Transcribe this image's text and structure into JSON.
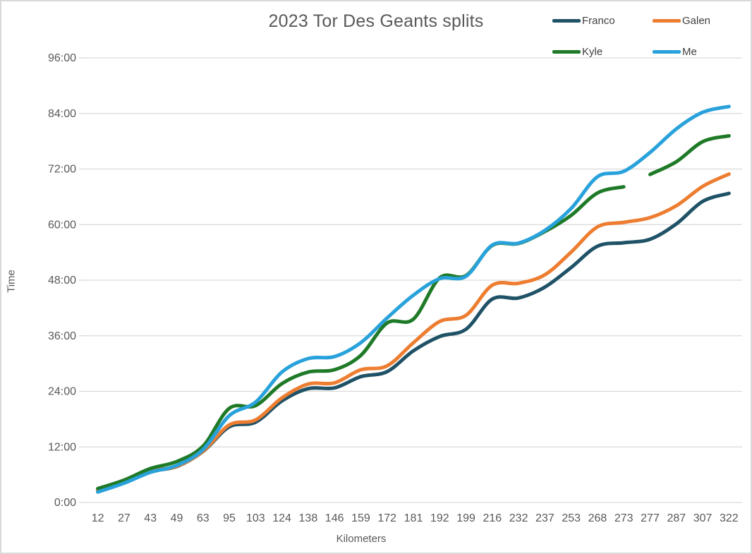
{
  "title": "2023 Tor Des Geants splits",
  "legend": {
    "items": [
      {
        "label": "Franco",
        "color": "#1f5266"
      },
      {
        "label": "Galen",
        "color": "#ed7d31"
      },
      {
        "label": "Kyle",
        "color": "#1f7a28"
      },
      {
        "label": "Me",
        "color": "#29a2db"
      }
    ]
  },
  "axes": {
    "x_title": "Kilometers",
    "y_title": "Time",
    "y_tick_labels": [
      "0:00",
      "12:00",
      "24:00",
      "36:00",
      "48:00",
      "60:00",
      "72:00",
      "84:00",
      "96:00"
    ]
  },
  "colors": {
    "gridline": "#d9d9d9",
    "tick": "#d9d9d9",
    "axis_text": "#595959",
    "legend_text": "#404040",
    "title_text": "#595959"
  },
  "chart_data": {
    "type": "line",
    "smoothed": true,
    "title": "2023 Tor Des Geants splits",
    "xlabel": "Kilometers",
    "ylabel": "Time",
    "ylim_hours": [
      0,
      96
    ],
    "y_tick_step_hours": 12,
    "grid": "horizontal",
    "legend_position": "top-right",
    "categories": [
      "12",
      "27",
      "43",
      "49",
      "63",
      "95",
      "103",
      "124",
      "138",
      "146",
      "159",
      "172",
      "181",
      "192",
      "199",
      "216",
      "232",
      "237",
      "253",
      "268",
      "273",
      "277",
      "287",
      "307",
      "322"
    ],
    "series": [
      {
        "name": "Franco",
        "color": "#1f5266",
        "values": [
          "2:30",
          "4:20",
          "6:40",
          "7:45",
          "11:00",
          "16:20",
          "17:20",
          "21:55",
          "24:35",
          "24:45",
          "27:10",
          "28:15",
          "32:45",
          "35:50",
          "37:25",
          "43:55",
          "44:10",
          "46:30",
          "50:45",
          "55:20",
          "56:05",
          "56:50",
          "60:10",
          "65:00",
          "66:45"
        ]
      },
      {
        "name": "Galen",
        "color": "#ed7d31",
        "values": [
          "2:40",
          "4:25",
          "6:45",
          "7:50",
          "11:05",
          "16:45",
          "17:50",
          "22:35",
          "25:35",
          "25:50",
          "28:40",
          "29:30",
          "34:30",
          "39:05",
          "40:25",
          "46:55",
          "47:20",
          "49:10",
          "54:05",
          "59:30",
          "60:30",
          "61:30",
          "64:05",
          "68:15",
          "70:55"
        ]
      },
      {
        "name": "Kyle",
        "color": "#1f7a28",
        "gap_after_index": 20,
        "values": [
          "3:00",
          "4:50",
          "7:20",
          "8:50",
          "12:10",
          "20:20",
          "20:55",
          "25:40",
          "28:10",
          "28:40",
          "31:45",
          "38:45",
          "39:35",
          "48:30",
          "49:00",
          "55:30",
          "55:55",
          "58:30",
          "62:00",
          "66:50",
          "68:10",
          "70:50",
          "73:35",
          "77:55",
          "79:10"
        ]
      },
      {
        "name": "Me",
        "color": "#29a2db",
        "values": [
          "2:15",
          "4:10",
          "6:30",
          "8:00",
          "11:25",
          "18:45",
          "21:40",
          "28:10",
          "31:05",
          "31:30",
          "34:30",
          "39:50",
          "44:45",
          "48:20",
          "48:50",
          "55:35",
          "56:00",
          "58:45",
          "63:30",
          "70:20",
          "71:30",
          "75:35",
          "80:40",
          "84:15",
          "85:30"
        ]
      }
    ]
  }
}
